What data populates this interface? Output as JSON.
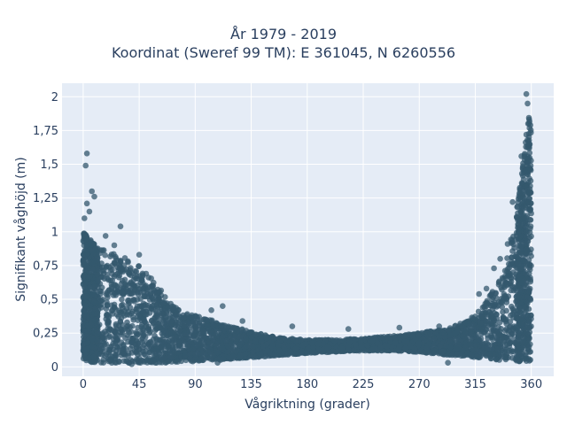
{
  "chart_data": {
    "type": "scatter",
    "title_line1": "År 1979 - 2019",
    "title_line2": "Koordinat (Sweref 99 TM): E 361045, N 6260556",
    "xlabel": "Vågriktning (grader)",
    "ylabel": "Signifikant våghöjd (m)",
    "xlim": [
      -17,
      378
    ],
    "ylim": [
      -0.07,
      2.1
    ],
    "x_ticks": [
      0,
      45,
      90,
      135,
      180,
      225,
      270,
      315,
      360
    ],
    "x_tick_labels": [
      "0",
      "45",
      "90",
      "135",
      "180",
      "225",
      "270",
      "315",
      "360"
    ],
    "y_ticks": [
      0,
      0.25,
      0.5,
      0.75,
      1,
      1.25,
      1.5,
      1.75,
      2
    ],
    "y_tick_labels": [
      "0",
      "0,25",
      "0,5",
      "0,75",
      "1",
      "1,25",
      "1,5",
      "1,75",
      "2"
    ],
    "grid": true,
    "legend": "none",
    "marker_color": "#34586e",
    "plot_bg": "#e5ecf6",
    "envelope": [
      {
        "x": 0,
        "min": 0.04,
        "max": 1.0
      },
      {
        "x": 10,
        "min": 0.03,
        "max": 0.9
      },
      {
        "x": 20,
        "min": 0.03,
        "max": 0.85
      },
      {
        "x": 30,
        "min": 0.03,
        "max": 0.82
      },
      {
        "x": 40,
        "min": 0.03,
        "max": 0.78
      },
      {
        "x": 50,
        "min": 0.03,
        "max": 0.72
      },
      {
        "x": 60,
        "min": 0.03,
        "max": 0.6
      },
      {
        "x": 70,
        "min": 0.03,
        "max": 0.48
      },
      {
        "x": 80,
        "min": 0.04,
        "max": 0.4
      },
      {
        "x": 90,
        "min": 0.04,
        "max": 0.38
      },
      {
        "x": 100,
        "min": 0.05,
        "max": 0.36
      },
      {
        "x": 110,
        "min": 0.05,
        "max": 0.32
      },
      {
        "x": 120,
        "min": 0.06,
        "max": 0.3
      },
      {
        "x": 135,
        "min": 0.07,
        "max": 0.26
      },
      {
        "x": 150,
        "min": 0.08,
        "max": 0.23
      },
      {
        "x": 165,
        "min": 0.09,
        "max": 0.21
      },
      {
        "x": 180,
        "min": 0.1,
        "max": 0.2
      },
      {
        "x": 200,
        "min": 0.11,
        "max": 0.2
      },
      {
        "x": 225,
        "min": 0.12,
        "max": 0.21
      },
      {
        "x": 250,
        "min": 0.12,
        "max": 0.23
      },
      {
        "x": 270,
        "min": 0.11,
        "max": 0.25
      },
      {
        "x": 290,
        "min": 0.09,
        "max": 0.28
      },
      {
        "x": 305,
        "min": 0.08,
        "max": 0.33
      },
      {
        "x": 315,
        "min": 0.07,
        "max": 0.38
      },
      {
        "x": 325,
        "min": 0.06,
        "max": 0.5
      },
      {
        "x": 335,
        "min": 0.05,
        "max": 0.65
      },
      {
        "x": 340,
        "min": 0.05,
        "max": 0.8
      },
      {
        "x": 345,
        "min": 0.05,
        "max": 1.0
      },
      {
        "x": 350,
        "min": 0.04,
        "max": 1.3
      },
      {
        "x": 355,
        "min": 0.04,
        "max": 1.65
      },
      {
        "x": 358,
        "min": 0.04,
        "max": 1.85
      },
      {
        "x": 360,
        "min": 0.04,
        "max": 1.8
      }
    ],
    "outliers": [
      {
        "x": 3,
        "y": 1.58
      },
      {
        "x": 2,
        "y": 1.49
      },
      {
        "x": 7,
        "y": 1.3
      },
      {
        "x": 3,
        "y": 1.21
      },
      {
        "x": 9,
        "y": 1.26
      },
      {
        "x": 5,
        "y": 1.15
      },
      {
        "x": 1,
        "y": 1.1
      },
      {
        "x": 30,
        "y": 1.04
      },
      {
        "x": 18,
        "y": 0.97
      },
      {
        "x": 25,
        "y": 0.9
      },
      {
        "x": 45,
        "y": 0.83
      },
      {
        "x": 112,
        "y": 0.45
      },
      {
        "x": 103,
        "y": 0.42
      },
      {
        "x": 128,
        "y": 0.34
      },
      {
        "x": 168,
        "y": 0.3
      },
      {
        "x": 213,
        "y": 0.28
      },
      {
        "x": 254,
        "y": 0.29
      },
      {
        "x": 286,
        "y": 0.3
      },
      {
        "x": 304,
        "y": 0.3
      },
      {
        "x": 303,
        "y": 0.32
      },
      {
        "x": 318,
        "y": 0.54
      },
      {
        "x": 324,
        "y": 0.58
      },
      {
        "x": 330,
        "y": 0.73
      },
      {
        "x": 335,
        "y": 0.8
      },
      {
        "x": 341,
        "y": 0.91
      },
      {
        "x": 345,
        "y": 1.22
      },
      {
        "x": 352,
        "y": 1.56
      },
      {
        "x": 356,
        "y": 1.72
      },
      {
        "x": 356,
        "y": 2.02
      },
      {
        "x": 357,
        "y": 1.95
      },
      {
        "x": 293,
        "y": 0.03
      },
      {
        "x": 39,
        "y": 0.02
      },
      {
        "x": 108,
        "y": 0.03
      }
    ]
  }
}
